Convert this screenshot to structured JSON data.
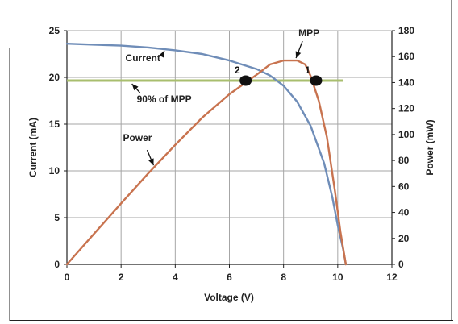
{
  "chart_data": {
    "type": "line",
    "xlabel": "Voltage (V)",
    "ylabel_left": "Current (mA)",
    "ylabel_right": "Power (mW)",
    "xlim": [
      0,
      12
    ],
    "ylim_left": [
      0,
      25
    ],
    "ylim_right": [
      0,
      180
    ],
    "x_ticks": [
      "0",
      "2",
      "4",
      "6",
      "8",
      "10",
      "12"
    ],
    "y_left_ticks": [
      "0",
      "5",
      "10",
      "15",
      "20",
      "25"
    ],
    "y_right_ticks": [
      "0",
      "20",
      "40",
      "60",
      "80",
      "100",
      "120",
      "140",
      "160",
      "180"
    ],
    "grid": true,
    "colors": {
      "current": "#6f8db8",
      "power": "#c8734f",
      "threshold": "#a8be6e",
      "grid": "#a6a6a6",
      "marker": "#111111"
    },
    "series": [
      {
        "name": "Current",
        "axis": "left",
        "x": [
          0,
          1,
          2,
          3,
          4,
          5,
          6,
          7,
          7.5,
          8,
          8.5,
          9,
          9.5,
          9.8,
          10,
          10.2,
          10.3
        ],
        "y": [
          23.6,
          23.5,
          23.4,
          23.2,
          22.9,
          22.5,
          21.8,
          20.9,
          20.2,
          19.1,
          17.4,
          14.8,
          10.8,
          7.2,
          4.2,
          1.6,
          0
        ]
      },
      {
        "name": "Power",
        "axis": "right",
        "x": [
          0,
          1,
          2,
          3,
          4,
          5,
          6,
          7,
          7.5,
          8,
          8.5,
          8.8,
          9,
          9.3,
          9.6,
          9.9,
          10.1,
          10.3
        ],
        "y": [
          0,
          23.5,
          47,
          70,
          92,
          113,
          131,
          146,
          154,
          157,
          157,
          154,
          145,
          126,
          98,
          56,
          25,
          0
        ]
      }
    ],
    "threshold": {
      "label": "90% of MPP",
      "axis": "right",
      "value": 141.5,
      "x_range": [
        0,
        10.2
      ]
    },
    "points": [
      {
        "label": "2",
        "x": 6.6,
        "y_right": 141.5
      },
      {
        "label": "1",
        "x": 9.2,
        "y_right": 141.5
      }
    ],
    "annotations": [
      {
        "text": "Current",
        "target_series": "Current",
        "at_x": 3.6
      },
      {
        "text": "Power",
        "target_series": "Power",
        "at_x": 3.2
      },
      {
        "text": "MPP",
        "target_series": "Power",
        "at_x": 8.4
      },
      {
        "text": "90% of MPP",
        "target_series": "threshold",
        "at_x": 2.4
      }
    ]
  }
}
